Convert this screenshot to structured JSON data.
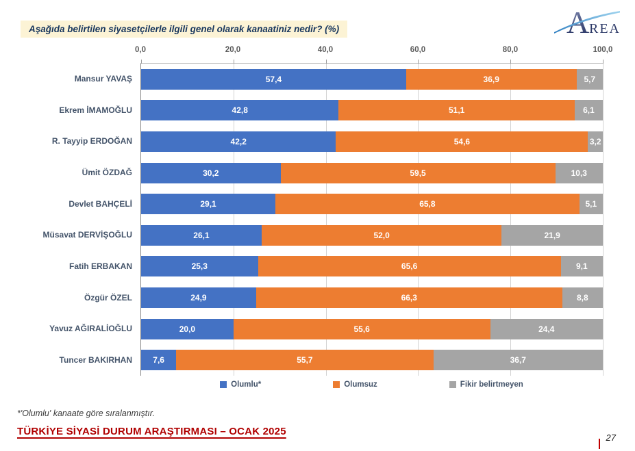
{
  "header": {
    "title": "Aşağıda belirtilen siyasetçilerle ilgili genel olarak kanaatiniz nedir? (%)",
    "logo": {
      "name": "AREA",
      "letter_a": "A",
      "rest": "REA"
    }
  },
  "chart_data": {
    "type": "bar",
    "orientation": "horizontal",
    "stacked": true,
    "title": "Aşağıda belirtilen siyasetçilerle ilgili genel olarak kanaatiniz nedir? (%)",
    "categories": [
      "Mansur YAVAŞ",
      "Ekrem İMAMOĞLU",
      "R. Tayyip ERDOĞAN",
      "Ümit ÖZDAĞ",
      "Devlet BAHÇELİ",
      "Müsavat DERVİŞOĞLU",
      "Fatih ERBAKAN",
      "Özgür ÖZEL",
      "Yavuz AĞIRALİOĞLU",
      "Tuncer BAKIRHAN"
    ],
    "series": [
      {
        "key": "olumlu",
        "name": "Olumlu*",
        "color": "#4472C4",
        "values": [
          57.4,
          42.8,
          42.2,
          30.2,
          29.1,
          26.1,
          25.3,
          24.9,
          20.0,
          7.6
        ]
      },
      {
        "key": "olumsuz",
        "name": "Olumsuz",
        "color": "#ED7D31",
        "values": [
          36.9,
          51.1,
          54.6,
          59.5,
          65.8,
          52.0,
          65.6,
          66.3,
          55.6,
          55.7
        ]
      },
      {
        "key": "fikir-belirtmeyen",
        "name": "Fikir belirtmeyen",
        "color": "#A5A5A5",
        "values": [
          5.7,
          6.1,
          3.2,
          10.3,
          5.1,
          21.9,
          9.1,
          8.8,
          24.4,
          36.7
        ]
      }
    ],
    "x_ticks": [
      "0,0",
      "20,0",
      "40,0",
      "60,0",
      "80,0",
      "100,0"
    ],
    "xlim": [
      0,
      100
    ],
    "grid": true,
    "legend_position": "bottom",
    "value_label_format": "one-decimal-comma"
  },
  "footnote": "*'Olumlu' kanaate göre sıralanmıştır.",
  "footer": {
    "report_title": "TÜRKİYE SİYASİ DURUM ARAŞTIRMASI – OCAK 2025",
    "page_number": "27"
  }
}
